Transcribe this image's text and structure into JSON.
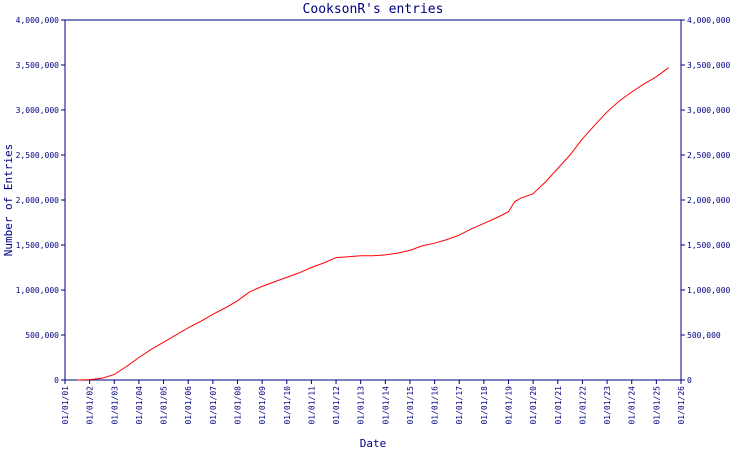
{
  "chart_data": {
    "type": "line",
    "title": "CooksonR's entries",
    "xlabel": "Date",
    "ylabel": "Number of Entries",
    "grid": false,
    "legend": "none",
    "xlim": [
      "2001-01-01",
      "2026-01-01"
    ],
    "ylim": [
      0,
      4000000
    ],
    "x_ticks": [
      "01/01/01",
      "01/01/02",
      "01/01/03",
      "01/01/04",
      "01/01/05",
      "01/01/06",
      "01/01/07",
      "01/01/08",
      "01/01/09",
      "01/01/10",
      "01/01/11",
      "01/01/12",
      "01/01/13",
      "01/01/14",
      "01/01/15",
      "01/01/16",
      "01/01/17",
      "01/01/18",
      "01/01/19",
      "01/01/20",
      "01/01/21",
      "01/01/22",
      "01/01/23",
      "01/01/24",
      "01/01/25",
      "01/01/26"
    ],
    "y_ticks": [
      "0",
      "500,000",
      "1,000,000",
      "1,500,000",
      "2,000,000",
      "2,500,000",
      "3,000,000",
      "3,500,000",
      "4,000,000"
    ],
    "colors": {
      "axis": "#000080",
      "line": "#ff0000"
    },
    "series": [
      {
        "x": [
          "2001-07-01",
          "2002-01-01",
          "2002-07-01",
          "2003-01-01",
          "2003-07-01",
          "2004-01-01",
          "2004-07-01",
          "2005-01-01",
          "2005-07-01",
          "2006-01-01",
          "2006-07-01",
          "2007-01-01",
          "2007-07-01",
          "2008-01-01",
          "2008-07-01",
          "2009-01-01",
          "2009-07-01",
          "2010-01-01",
          "2010-07-01",
          "2011-01-01",
          "2011-07-01",
          "2012-01-01",
          "2012-07-01",
          "2013-01-01",
          "2013-07-01",
          "2014-01-01",
          "2014-07-01",
          "2015-01-01",
          "2015-07-01",
          "2016-01-01",
          "2016-07-01",
          "2017-01-01",
          "2017-07-01",
          "2018-01-01",
          "2018-07-01",
          "2019-01-01",
          "2019-04-01",
          "2019-07-01",
          "2020-01-01",
          "2020-07-01",
          "2021-01-01",
          "2021-07-01",
          "2022-01-01",
          "2022-07-01",
          "2023-01-01",
          "2023-07-01",
          "2024-01-01",
          "2024-07-01",
          "2025-01-01",
          "2025-07-01"
        ],
        "y": [
          0,
          5000,
          20000,
          60000,
          150000,
          250000,
          340000,
          420000,
          500000,
          580000,
          650000,
          730000,
          800000,
          880000,
          980000,
          1040000,
          1090000,
          1140000,
          1190000,
          1250000,
          1300000,
          1360000,
          1370000,
          1380000,
          1380000,
          1390000,
          1410000,
          1440000,
          1490000,
          1520000,
          1560000,
          1610000,
          1680000,
          1740000,
          1800000,
          1870000,
          1980000,
          2020000,
          2070000,
          2200000,
          2350000,
          2500000,
          2680000,
          2830000,
          2980000,
          3100000,
          3200000,
          3290000,
          3370000,
          3470000
        ]
      }
    ]
  }
}
